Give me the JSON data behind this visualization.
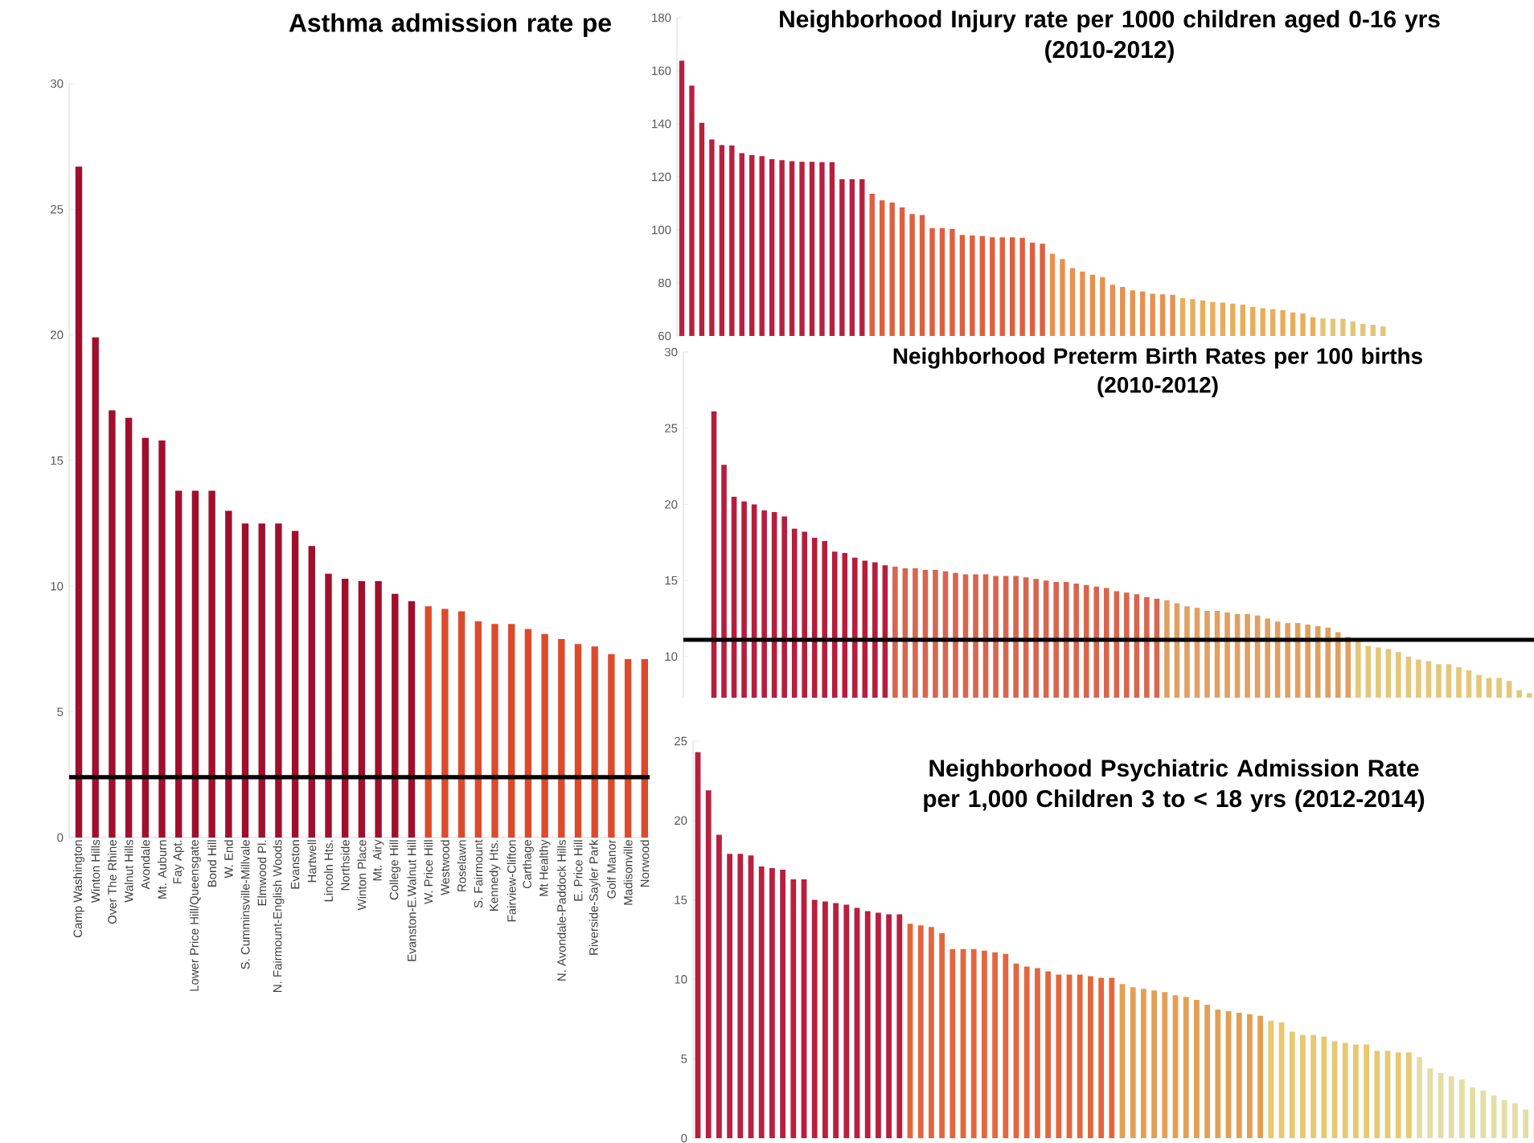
{
  "chart_data": [
    {
      "type": "bar",
      "title": "Asthma admission rate pe",
      "categories": [
        "Camp Washington",
        "Winton Hills",
        "Over The Rhine",
        "Walnut Hills",
        "Avondale",
        "Mt. Auburn",
        "Fay Apt.",
        "Lower Price Hill/Queensgate",
        "Bond Hill",
        "W. End",
        "S. Cumminsville-Millvale",
        "Elmwood Pl.",
        "N. Fairmount-English Woods",
        "Evanston",
        "Hartwell",
        "Lincoln Hts.",
        "Northside",
        "Winton Place",
        "Mt. Airy",
        "College Hill",
        "Evanston-E.Walnut Hill",
        "W. Price Hill",
        "Westwood",
        "Roselawn",
        "S. Fairmount",
        "Kennedy Hts.",
        "Fairview-Clifton",
        "Carthage",
        "Mt Healthy",
        "N. Avondale-Paddock Hills",
        "E. Price Hill",
        "Riverside-Sayler Park",
        "Golf Manor",
        "Madisonville",
        "Norwood"
      ],
      "values": [
        26.7,
        19.9,
        17.0,
        16.7,
        15.9,
        15.8,
        13.8,
        13.8,
        13.8,
        13.0,
        12.5,
        12.5,
        12.5,
        12.2,
        11.6,
        10.5,
        10.3,
        10.2,
        10.2,
        9.7,
        9.4,
        9.2,
        9.1,
        9.0,
        8.6,
        8.5,
        8.5,
        8.3,
        8.1,
        7.9,
        7.7,
        7.6,
        7.3,
        7.1,
        7.1
      ],
      "colors": [
        "#a0102c",
        "#a0102c",
        "#a0102c",
        "#a0102c",
        "#a0102c",
        "#a0102c",
        "#a0102c",
        "#a0102c",
        "#a0102c",
        "#a0102c",
        "#a0102c",
        "#a0102c",
        "#a0102c",
        "#a0102c",
        "#a0102c",
        "#a0102c",
        "#a0102c",
        "#a0102c",
        "#a0102c",
        "#a0102c",
        "#a0102c",
        "#dc4a2c",
        "#dc4a2c",
        "#dc4a2c",
        "#dc4a2c",
        "#dc4a2c",
        "#dc4a2c",
        "#dc4a2c",
        "#dc4a2c",
        "#dc4a2c",
        "#dc4a2c",
        "#dc4a2c",
        "#dc4a2c",
        "#dc4a2c",
        "#dc4a2c"
      ],
      "ylim": [
        0,
        30
      ],
      "yticks": [
        0,
        5,
        10,
        15,
        20,
        25,
        30
      ],
      "ref_lines": [
        {
          "axis": "y",
          "value": 2.4,
          "color": "#000000"
        }
      ]
    },
    {
      "type": "bar",
      "title": "Neighborhood Injury rate per 1000 children aged 0-16 yrs",
      "subtitle": "(2010-2012)",
      "categories": [
        null,
        null,
        null,
        null,
        null,
        null,
        null,
        null,
        null,
        null,
        null,
        null,
        null,
        null,
        null,
        null,
        null,
        null,
        null,
        null,
        null,
        null,
        null,
        null,
        null,
        null,
        null,
        null,
        null,
        null,
        null,
        null,
        null,
        null,
        null,
        null,
        null,
        null,
        null,
        null,
        null,
        null,
        null,
        null,
        null,
        null,
        null,
        null,
        null,
        null,
        null,
        null,
        null,
        null,
        null,
        null,
        null,
        null,
        null,
        null,
        null,
        null,
        null,
        null,
        null,
        null,
        null,
        null,
        null,
        null,
        null
      ],
      "values": [
        163.8,
        154.4,
        140.4,
        134.1,
        132.0,
        131.8,
        128.9,
        128.2,
        127.8,
        126.7,
        126.3,
        125.9,
        125.7,
        125.7,
        125.5,
        125.5,
        119.1,
        119.1,
        119.1,
        113.6,
        111.1,
        110.3,
        108.5,
        106.0,
        105.6,
        100.7,
        100.7,
        100.4,
        98.1,
        97.9,
        97.7,
        97.2,
        97.2,
        97.2,
        97.0,
        95.2,
        94.8,
        91.0,
        89.0,
        85.6,
        84.3,
        83.1,
        82.2,
        79.3,
        78.5,
        77.2,
        76.8,
        75.9,
        75.7,
        75.5,
        74.3,
        73.9,
        73.4,
        72.8,
        72.6,
        72.2,
        71.8,
        71.0,
        70.5,
        70.1,
        69.7,
        68.9,
        68.5,
        67.1,
        66.7,
        66.5,
        66.5,
        65.5,
        64.6,
        64.2,
        63.6
      ],
      "colors": [
        "#b8203f",
        "#b8203f",
        "#b8203f",
        "#b8203f",
        "#b8203f",
        "#b8203f",
        "#b8203f",
        "#b8203f",
        "#b8203f",
        "#b8203f",
        "#b8203f",
        "#b8203f",
        "#b8203f",
        "#b8203f",
        "#b8203f",
        "#b8203f",
        "#b8203f",
        "#b8203f",
        "#b8203f",
        "#df5f3e",
        "#df5f3e",
        "#df5f3e",
        "#df5f3e",
        "#df5f3e",
        "#df5f3e",
        "#df5f3e",
        "#df5f3e",
        "#df5f3e",
        "#df5f3e",
        "#df5f3e",
        "#df5f3e",
        "#df5f3e",
        "#df5f3e",
        "#df5f3e",
        "#df5f3e",
        "#df5f3e",
        "#df5f3e",
        "#e6914f",
        "#e6914f",
        "#e6914f",
        "#e6914f",
        "#e6914f",
        "#e6914f",
        "#e6914f",
        "#e6914f",
        "#e6914f",
        "#e6914f",
        "#e6914f",
        "#e6914f",
        "#e6914f",
        "#e8ad5c",
        "#e8ad5c",
        "#e8ad5c",
        "#e8ad5c",
        "#e8ad5c",
        "#e8ad5c",
        "#e8ad5c",
        "#e8ad5c",
        "#e8ad5c",
        "#e8ad5c",
        "#e8ad5c",
        "#e8ad5c",
        "#e8ad5c",
        "#e8ad5c",
        "#e3c57a",
        "#e3c57a",
        "#e3c57a",
        "#e3c57a",
        "#e3c57a",
        "#e3c57a",
        "#e3c57a"
      ],
      "ylim": [
        60,
        180
      ],
      "yticks": [
        60,
        80,
        100,
        120,
        140,
        160,
        180
      ],
      "tick_labels": "y"
    },
    {
      "type": "bar",
      "title": "Neighborhood Preterm Birth Rates per 100 births",
      "subtitle": "(2010-2012)",
      "categories": [
        null,
        null,
        null,
        null,
        null,
        null,
        null,
        null,
        null,
        null,
        null,
        null,
        null,
        null,
        null,
        null,
        null,
        null,
        null,
        null,
        null,
        null,
        null,
        null,
        null,
        null,
        null,
        null,
        null,
        null,
        null,
        null,
        null,
        null,
        null,
        null,
        null,
        null,
        null,
        null,
        null,
        null,
        null,
        null,
        null,
        null,
        null,
        null,
        null,
        null,
        null,
        null,
        null,
        null,
        null,
        null,
        null,
        null,
        null,
        null,
        null,
        null,
        null,
        null,
        null,
        null,
        null,
        null,
        null,
        null,
        null,
        null,
        null,
        null,
        null,
        null,
        null,
        null,
        null,
        null,
        null,
        null
      ],
      "values": [
        26.1,
        22.6,
        20.5,
        20.2,
        20.0,
        19.6,
        19.5,
        19.2,
        18.4,
        18.2,
        17.8,
        17.6,
        16.9,
        16.8,
        16.5,
        16.3,
        16.2,
        16.0,
        15.9,
        15.8,
        15.8,
        15.7,
        15.7,
        15.6,
        15.5,
        15.4,
        15.4,
        15.4,
        15.3,
        15.3,
        15.3,
        15.2,
        15.1,
        15.0,
        14.9,
        14.9,
        14.8,
        14.7,
        14.6,
        14.5,
        14.3,
        14.2,
        14.1,
        13.9,
        13.8,
        13.7,
        13.5,
        13.3,
        13.2,
        13.0,
        13.0,
        12.9,
        12.8,
        12.8,
        12.7,
        12.5,
        12.3,
        12.2,
        12.2,
        12.1,
        12.0,
        11.9,
        11.6,
        11.3,
        11.0,
        10.7,
        10.6,
        10.5,
        10.3,
        10.0,
        9.8,
        9.7,
        9.5,
        9.5,
        9.3,
        9.1,
        8.8,
        8.6,
        8.6,
        8.4,
        7.8,
        7.6
      ],
      "colors": [
        "#b51e3c",
        "#b51e3c",
        "#b51e3c",
        "#b51e3c",
        "#b51e3c",
        "#b51e3c",
        "#b51e3c",
        "#b51e3c",
        "#b51e3c",
        "#b51e3c",
        "#b51e3c",
        "#b51e3c",
        "#b51e3c",
        "#b51e3c",
        "#b51e3c",
        "#b51e3c",
        "#b51e3c",
        "#b51e3c",
        "#d8664f",
        "#d8664f",
        "#d8664f",
        "#d8664f",
        "#d8664f",
        "#d8664f",
        "#d8664f",
        "#d8664f",
        "#d8664f",
        "#d8664f",
        "#d8664f",
        "#d8664f",
        "#d8664f",
        "#d8664f",
        "#d8664f",
        "#d8664f",
        "#d8664f",
        "#d8664f",
        "#d8664f",
        "#d8664f",
        "#d8664f",
        "#d8664f",
        "#d8664f",
        "#d8664f",
        "#d8664f",
        "#d8664f",
        "#d8664f",
        "#e0a062",
        "#e0a062",
        "#e0a062",
        "#e0a062",
        "#e0a062",
        "#e0a062",
        "#e0a062",
        "#e0a062",
        "#e0a062",
        "#e0a062",
        "#e0a062",
        "#e0a062",
        "#e0a062",
        "#e0a062",
        "#e0a062",
        "#e0a062",
        "#e0a062",
        "#e0a062",
        "#e0a062",
        "#e3c77a",
        "#e3c77a",
        "#e3c77a",
        "#e3c77a",
        "#e3c77a",
        "#e3c77a",
        "#e3c77a",
        "#e3c77a",
        "#e3c77a",
        "#e3c77a",
        "#e3c77a",
        "#e3c77a",
        "#e3c77a",
        "#e3c77a",
        "#e3c77a",
        "#e3c77a",
        "#e3c77a",
        "#e3c77a"
      ],
      "ylim": [
        7.3,
        30
      ],
      "yticks": [
        10,
        15,
        20,
        25,
        30
      ],
      "tick_labels": "y",
      "ref_lines": [
        {
          "axis": "y",
          "value": 11.1,
          "color": "#000000"
        }
      ]
    },
    {
      "type": "bar",
      "title": "Neighborhood Psychiatric Admission Rate per 1,000 Children 3 to < 18 yrs (2012-2014)",
      "categories": [
        null,
        null,
        null,
        null,
        null,
        null,
        null,
        null,
        null,
        null,
        null,
        null,
        null,
        null,
        null,
        null,
        null,
        null,
        null,
        null,
        null,
        null,
        null,
        null,
        null,
        null,
        null,
        null,
        null,
        null,
        null,
        null,
        null,
        null,
        null,
        null,
        null,
        null,
        null,
        null,
        null,
        null,
        null,
        null,
        null,
        null,
        null,
        null,
        null,
        null,
        null,
        null,
        null,
        null,
        null,
        null,
        null,
        null,
        null,
        null,
        null,
        null,
        null,
        null,
        null,
        null,
        null,
        null,
        null,
        null,
        null,
        null,
        null,
        null,
        null,
        null,
        null,
        null,
        null,
        null
      ],
      "values": [
        24.3,
        21.9,
        19.1,
        17.9,
        17.9,
        17.8,
        17.1,
        17.0,
        16.9,
        16.3,
        16.3,
        15.0,
        14.9,
        14.8,
        14.7,
        14.5,
        14.3,
        14.2,
        14.1,
        14.1,
        13.5,
        13.4,
        13.3,
        12.9,
        11.9,
        11.9,
        11.9,
        11.8,
        11.7,
        11.6,
        11.0,
        10.8,
        10.7,
        10.5,
        10.3,
        10.3,
        10.3,
        10.2,
        10.1,
        10.1,
        9.7,
        9.5,
        9.4,
        9.3,
        9.2,
        9.0,
        8.9,
        8.7,
        8.4,
        8.1,
        8.0,
        7.9,
        7.8,
        7.7,
        7.4,
        7.3,
        6.7,
        6.5,
        6.5,
        6.4,
        6.1,
        6.0,
        5.9,
        5.9,
        5.5,
        5.5,
        5.4,
        5.4,
        5.1,
        4.4,
        4.1,
        3.9,
        3.7,
        3.2,
        3.0,
        2.7,
        2.4,
        2.2,
        1.8,
        1.0
      ],
      "colors": [
        "#b8203f",
        "#b8203f",
        "#b8203f",
        "#b8203f",
        "#b8203f",
        "#b8203f",
        "#b8203f",
        "#b8203f",
        "#b8203f",
        "#b8203f",
        "#b8203f",
        "#b8203f",
        "#b8203f",
        "#b8203f",
        "#b8203f",
        "#b8203f",
        "#b8203f",
        "#b8203f",
        "#b8203f",
        "#b8203f",
        "#e3673e",
        "#e3673e",
        "#e3673e",
        "#e3673e",
        "#e3673e",
        "#e3673e",
        "#e3673e",
        "#e3673e",
        "#e3673e",
        "#e3673e",
        "#e3673e",
        "#e3673e",
        "#e3673e",
        "#e3673e",
        "#e3673e",
        "#e3673e",
        "#e3673e",
        "#e3673e",
        "#e3673e",
        "#e3673e",
        "#e2a055",
        "#e2a055",
        "#e2a055",
        "#e2a055",
        "#e2a055",
        "#e2a055",
        "#e2a055",
        "#e2a055",
        "#e2a055",
        "#e2a055",
        "#e2a055",
        "#e2a055",
        "#e2a055",
        "#e2a055",
        "#e8c870",
        "#e8c870",
        "#e8c870",
        "#e8c870",
        "#e8c870",
        "#e8c870",
        "#e8c870",
        "#e8c870",
        "#e8c870",
        "#e8c870",
        "#e8c870",
        "#e8c870",
        "#e8c870",
        "#e8c870",
        "#e4dea6",
        "#e4dea6",
        "#e4dea6",
        "#e4dea6",
        "#e4dea6",
        "#e4dea6",
        "#e4dea6",
        "#e4dea6",
        "#e4dea6",
        "#e4dea6",
        "#e4dea6",
        "#e4dea6"
      ],
      "ylim": [
        0,
        25
      ],
      "yticks": [
        0,
        5,
        10,
        15,
        20,
        25
      ],
      "tick_labels": "y"
    }
  ]
}
